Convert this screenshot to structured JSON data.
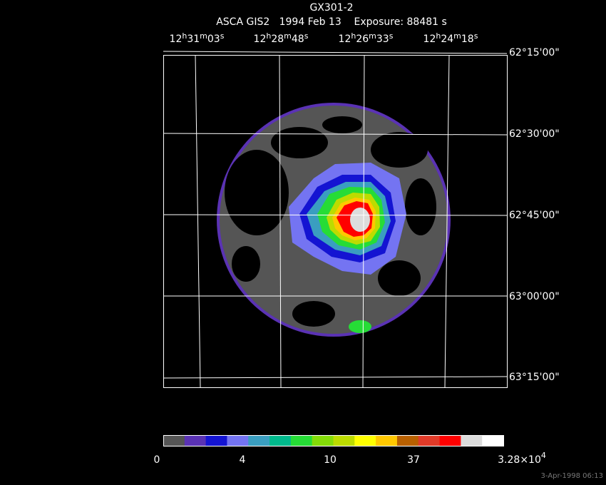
{
  "header": {
    "title": "GX301-2",
    "subtitle": "ASCA GIS2   1994 Feb 13    Exposure: 88481 s"
  },
  "ra_labels": [
    [
      "12",
      "h",
      "31",
      "m",
      "03",
      "s"
    ],
    [
      "12",
      "h",
      "28",
      "m",
      "48",
      "s"
    ],
    [
      "12",
      "h",
      "26",
      "m",
      "33",
      "s"
    ],
    [
      "12",
      "h",
      "24",
      "m",
      "18",
      "s"
    ]
  ],
  "dec_labels": [
    "62°15'00\"",
    "62°30'00\"",
    "62°45'00\"",
    "63°00'00\"",
    "63°15'00\""
  ],
  "colorbar": {
    "labels": [
      [
        "0"
      ],
      [
        "4"
      ],
      [
        "10"
      ],
      [
        "37"
      ],
      [
        "3.28×10",
        "4"
      ]
    ],
    "colors": [
      "#555555",
      "#5a32b4",
      "#1414d2",
      "#7474f2",
      "#3a9ec0",
      "#00b98c",
      "#26dc36",
      "#84dc08",
      "#bcdc00",
      "#ffff00",
      "#ffc800",
      "#b86000",
      "#e03a28",
      "#ff0000",
      "#dcdcdc",
      "#ffffff"
    ]
  },
  "timestamp": "3-Apr-1998 06:13"
}
